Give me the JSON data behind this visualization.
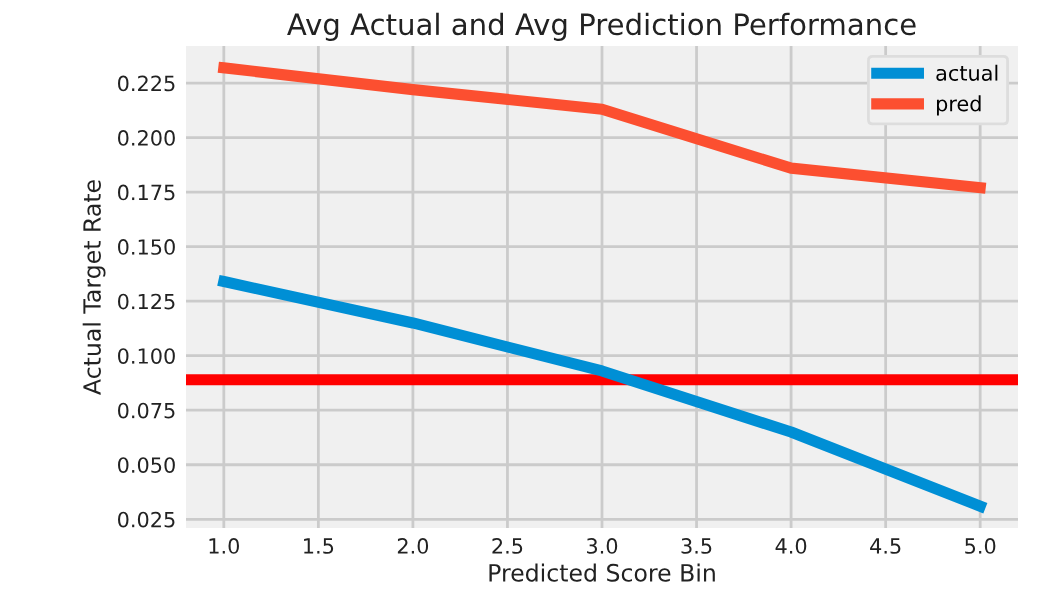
{
  "chart_data": {
    "type": "line",
    "title": "Avg Actual and Avg Prediction Performance",
    "xlabel": "Predicted Score Bin",
    "ylabel": "Actual Target Rate",
    "x": [
      1.0,
      2.0,
      3.0,
      4.0,
      5.0
    ],
    "series": [
      {
        "name": "actual",
        "color": "#008fd5",
        "values": [
          0.134,
          0.115,
          0.093,
          0.065,
          0.031
        ]
      },
      {
        "name": "pred",
        "color": "#fc4f30",
        "values": [
          0.232,
          0.222,
          0.213,
          0.186,
          0.177
        ]
      }
    ],
    "xlim": [
      0.8,
      5.2
    ],
    "ylim": [
      0.021,
      0.242
    ],
    "xticks": [
      {
        "value": 1.0,
        "label": "1.0"
      },
      {
        "value": 1.5,
        "label": "1.5"
      },
      {
        "value": 2.0,
        "label": "2.0"
      },
      {
        "value": 2.5,
        "label": "2.5"
      },
      {
        "value": 3.0,
        "label": "3.0"
      },
      {
        "value": 3.5,
        "label": "3.5"
      },
      {
        "value": 4.0,
        "label": "4.0"
      },
      {
        "value": 4.5,
        "label": "4.5"
      },
      {
        "value": 5.0,
        "label": "5.0"
      }
    ],
    "yticks": [
      {
        "value": 0.025,
        "label": "0.025"
      },
      {
        "value": 0.05,
        "label": "0.050"
      },
      {
        "value": 0.075,
        "label": "0.075"
      },
      {
        "value": 0.1,
        "label": "0.100"
      },
      {
        "value": 0.125,
        "label": "0.125"
      },
      {
        "value": 0.15,
        "label": "0.150"
      },
      {
        "value": 0.175,
        "label": "0.175"
      },
      {
        "value": 0.2,
        "label": "0.200"
      },
      {
        "value": 0.225,
        "label": "0.225"
      }
    ],
    "ref_lines": [
      {
        "axis": "y",
        "value": 0.089,
        "color": "#ff0000"
      }
    ],
    "grid": true,
    "legend": "top right",
    "marker": "none",
    "line_style": "solid"
  }
}
